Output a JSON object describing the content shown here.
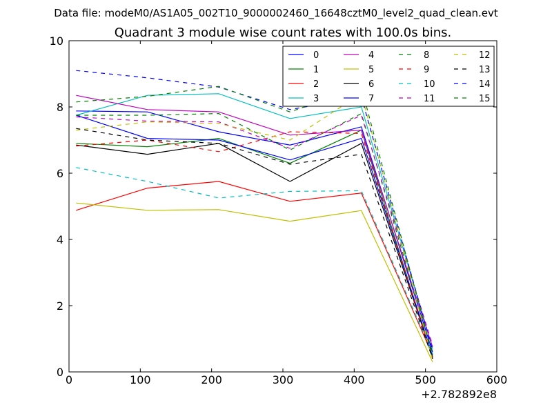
{
  "suptitle": "Data file: modeM0/AS1A05_002T10_9000002460_16648cztM0_level2_quad_clean.evt",
  "chart_data": {
    "type": "line",
    "title": "Quadrant 3 module wise count rates with 100.0s bins.",
    "xlabel": "",
    "ylabel": "",
    "x_offset_label": "+2.782892e8",
    "xlim": [
      0,
      600
    ],
    "ylim": [
      0,
      10
    ],
    "xticks": [
      0,
      100,
      200,
      300,
      400,
      500,
      600
    ],
    "yticks": [
      0,
      2,
      4,
      6,
      8,
      10
    ],
    "grid": false,
    "legend_position": "top-right",
    "legend_columns": 4,
    "x": [
      10,
      110,
      210,
      310,
      410,
      510
    ],
    "series": [
      {
        "name": "0",
        "color": "#0000ff",
        "dash": "solid",
        "values": [
          7.88,
          7.85,
          7.25,
          6.85,
          7.4,
          0.6
        ]
      },
      {
        "name": "1",
        "color": "#008000",
        "dash": "solid",
        "values": [
          6.9,
          6.8,
          7.05,
          6.3,
          7.3,
          0.4
        ]
      },
      {
        "name": "2",
        "color": "#ff0000",
        "dash": "solid",
        "values": [
          4.88,
          5.55,
          5.75,
          5.15,
          5.4,
          0.5
        ]
      },
      {
        "name": "3",
        "color": "#00bfbf",
        "dash": "solid",
        "values": [
          7.75,
          8.35,
          8.4,
          7.65,
          8.0,
          0.7
        ]
      },
      {
        "name": "4",
        "color": "#bf00bf",
        "dash": "solid",
        "values": [
          8.35,
          7.92,
          7.85,
          7.15,
          7.3,
          0.75
        ]
      },
      {
        "name": "5",
        "color": "#bfbf00",
        "dash": "solid",
        "values": [
          5.1,
          4.88,
          4.9,
          4.55,
          4.87,
          0.3
        ]
      },
      {
        "name": "6",
        "color": "#000000",
        "dash": "solid",
        "values": [
          6.85,
          6.57,
          6.9,
          5.75,
          6.9,
          0.45
        ]
      },
      {
        "name": "7",
        "color": "#0000ff",
        "dash": "solid",
        "values": [
          7.75,
          7.05,
          7.0,
          6.4,
          7.05,
          0.5
        ]
      },
      {
        "name": "8",
        "color": "#008000",
        "dash": "dashed",
        "values": [
          7.75,
          7.75,
          7.8,
          6.7,
          7.8,
          0.55
        ]
      },
      {
        "name": "9",
        "color": "#ff0000",
        "dash": "dashed",
        "values": [
          6.82,
          7.0,
          6.65,
          7.25,
          7.2,
          0.4
        ]
      },
      {
        "name": "10",
        "color": "#00bfbf",
        "dash": "dashed",
        "values": [
          6.17,
          5.75,
          5.25,
          5.45,
          5.47,
          0.55
        ]
      },
      {
        "name": "11",
        "color": "#bf00bf",
        "dash": "dashed",
        "values": [
          7.7,
          7.57,
          7.55,
          6.75,
          7.75,
          0.8
        ]
      },
      {
        "name": "12",
        "color": "#bfbf00",
        "dash": "dashed",
        "values": [
          7.3,
          7.55,
          7.5,
          7.0,
          8.4,
          0.35
        ]
      },
      {
        "name": "13",
        "color": "#000000",
        "dash": "dashed",
        "values": [
          7.35,
          7.0,
          6.9,
          6.27,
          6.57,
          0.4
        ]
      },
      {
        "name": "14",
        "color": "#0000ff",
        "dash": "dashed",
        "values": [
          9.1,
          8.88,
          8.6,
          7.92,
          8.3,
          0.65
        ]
      },
      {
        "name": "15",
        "color": "#008000",
        "dash": "dashed",
        "values": [
          8.15,
          8.32,
          8.62,
          7.85,
          8.6,
          0.5
        ]
      }
    ]
  }
}
